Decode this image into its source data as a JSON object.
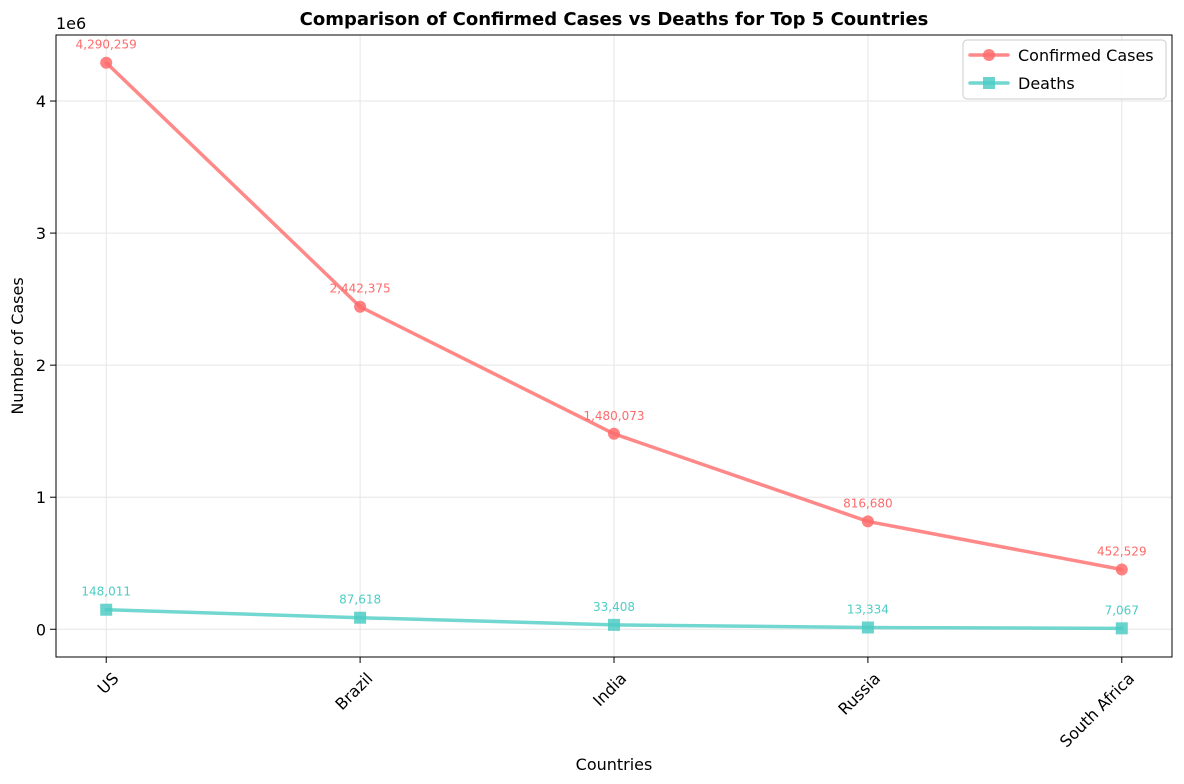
{
  "chart_data": {
    "type": "line",
    "title": "Comparison of Confirmed Cases vs Deaths for Top 5 Countries",
    "xlabel": "Countries",
    "ylabel": "Number of Cases",
    "y_offset_text": "1e6",
    "y_scale": 1000000,
    "ylim": [
      -210000,
      4500000
    ],
    "yticks": [
      0,
      1000000,
      2000000,
      3000000,
      4000000
    ],
    "ytick_labels": [
      "0",
      "1",
      "2",
      "3",
      "4"
    ],
    "grid": true,
    "legend_position": "top-right",
    "categories": [
      "US",
      "Brazil",
      "India",
      "Russia",
      "South Africa"
    ],
    "series": [
      {
        "name": "Confirmed Cases",
        "marker": "circle",
        "color": "#ff6b6b",
        "values": [
          4290259,
          2442375,
          1480073,
          816680,
          452529
        ],
        "labels": [
          "4,290,259",
          "2,442,375",
          "1,480,073",
          "816,680",
          "452,529"
        ]
      },
      {
        "name": "Deaths",
        "marker": "square",
        "color": "#4ecdc4",
        "values": [
          148011,
          87618,
          33408,
          13334,
          7067
        ],
        "labels": [
          "148,011",
          "87,618",
          "33,408",
          "13,334",
          "7,067"
        ]
      }
    ]
  }
}
